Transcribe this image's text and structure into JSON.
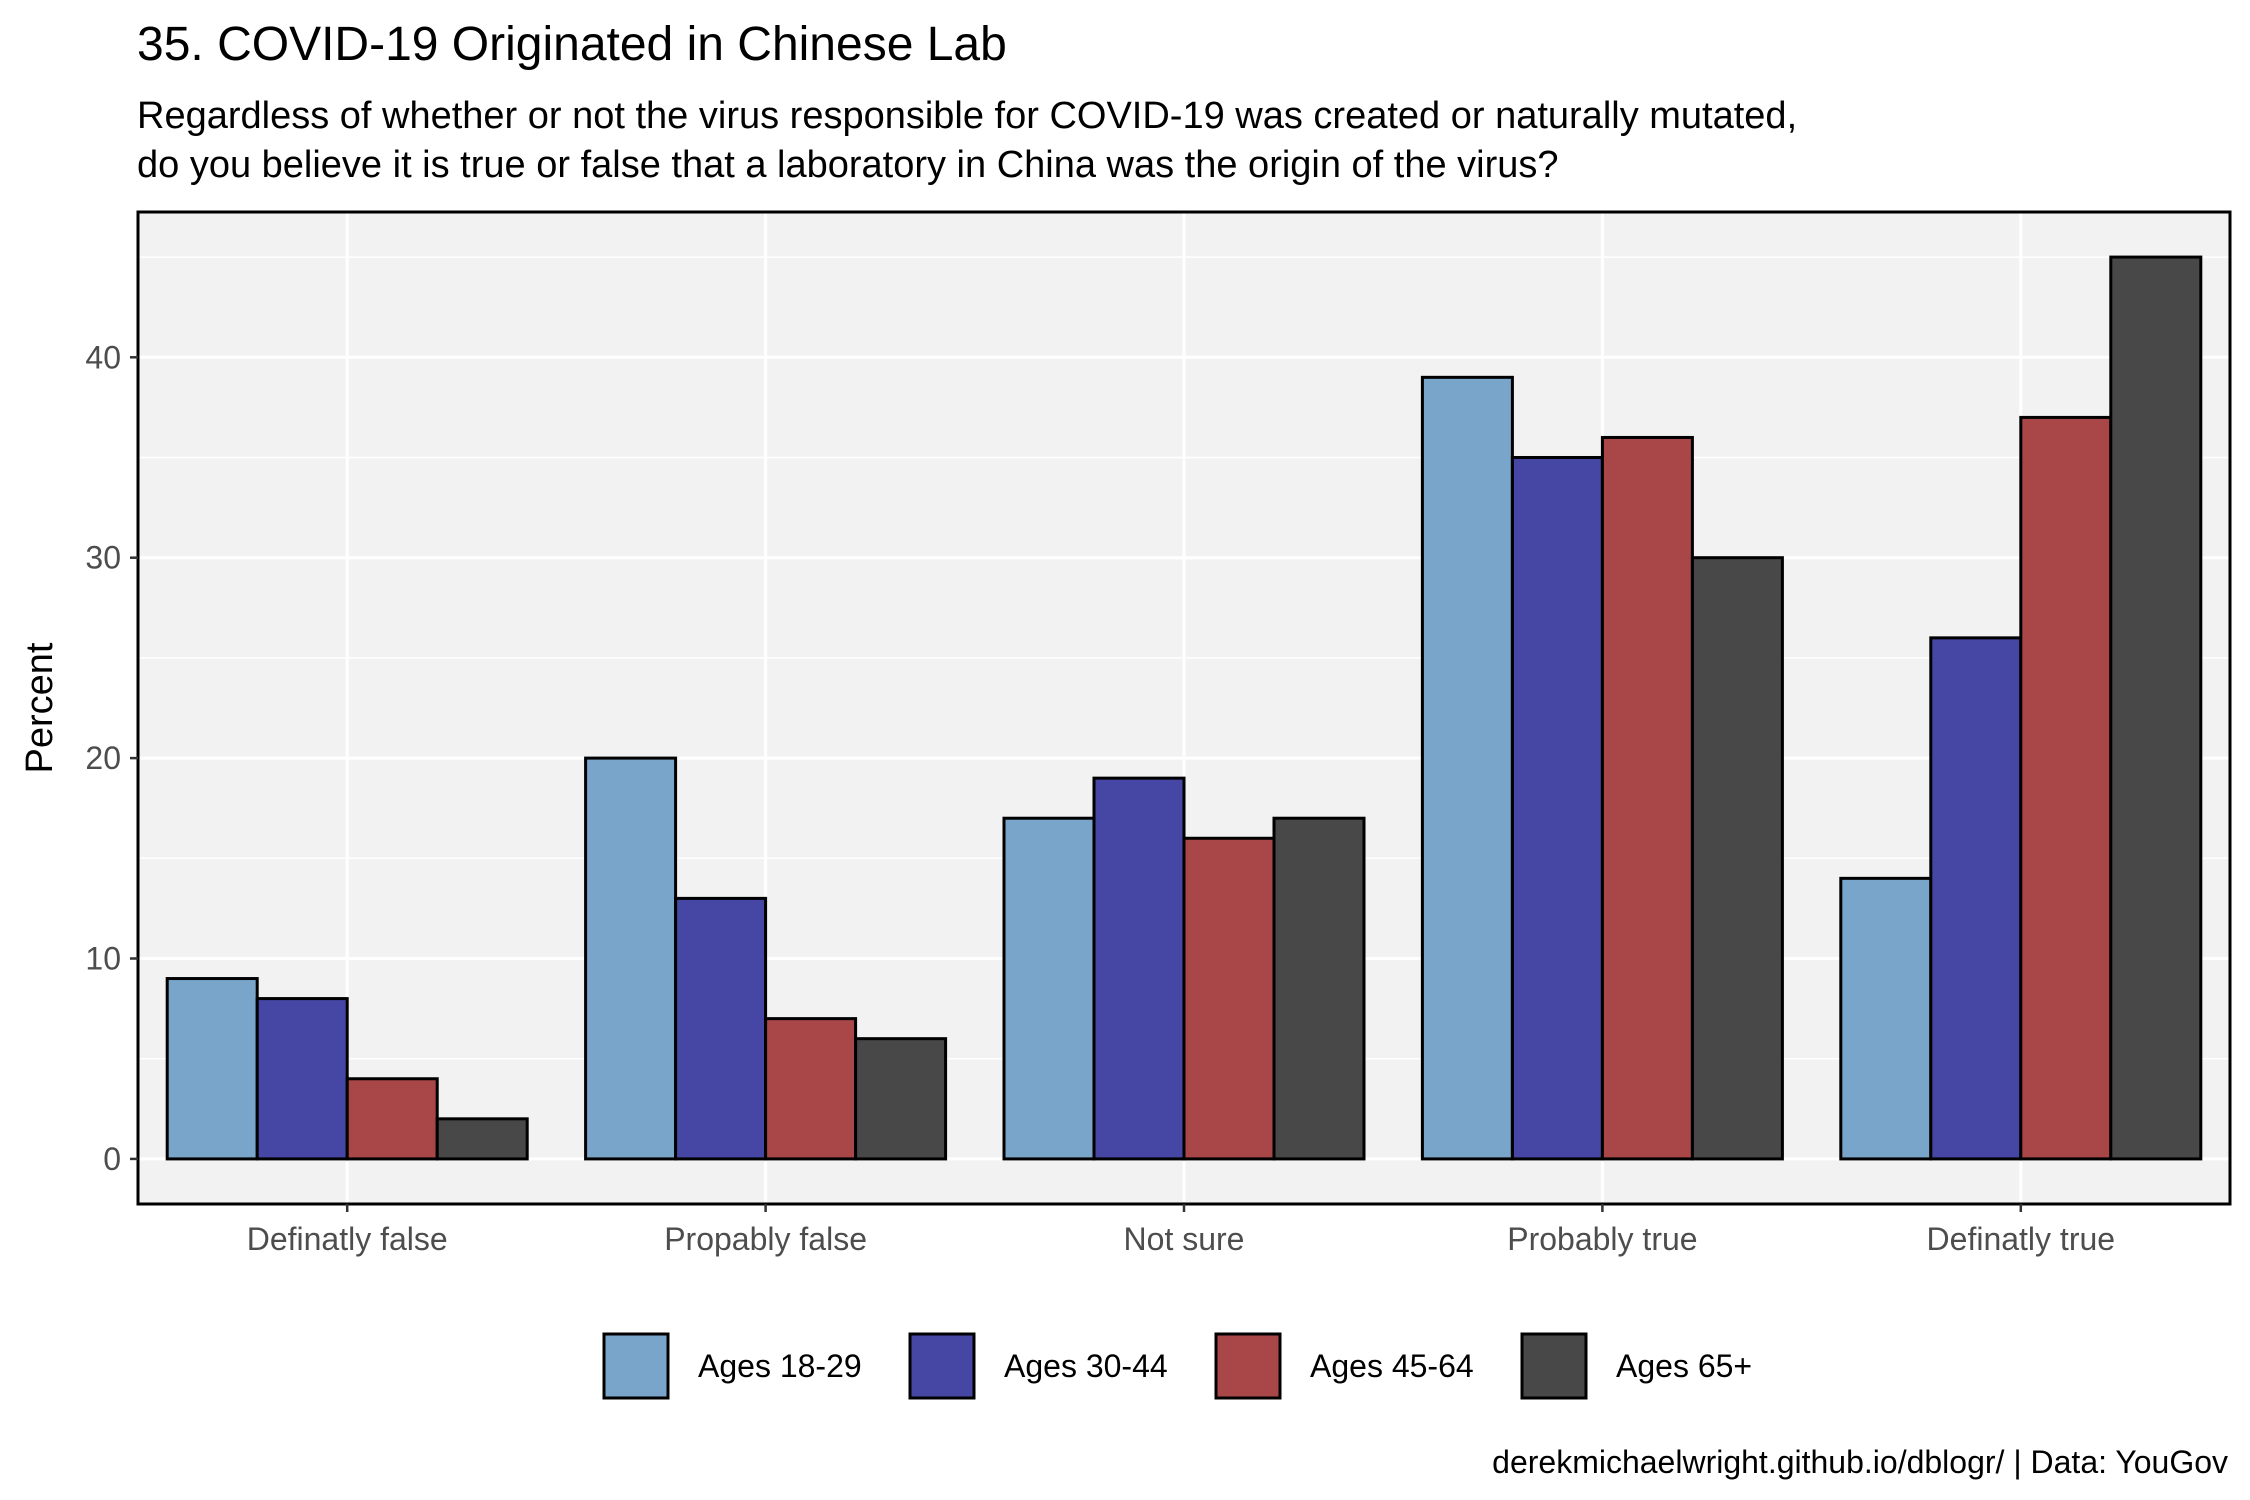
{
  "chart_data": {
    "type": "bar",
    "title": "35. COVID-19 Originated in Chinese Lab",
    "subtitle": [
      "Regardless of whether or not the virus responsible for COVID-19 was created or naturally mutated,",
      "do you believe it is true or false that a laboratory in China was the origin of the virus?"
    ],
    "xlabel": "",
    "ylabel": "Percent",
    "caption": "derekmichaelwright.github.io/dblogr/ | Data: YouGov",
    "categories": [
      "Definatly false",
      "Propably false",
      "Not sure",
      "Probably true",
      "Definatly true"
    ],
    "series": [
      {
        "name": "Ages 18-29",
        "color": "#78a5c9",
        "values": [
          9,
          20,
          17,
          39,
          14
        ]
      },
      {
        "name": "Ages 30-44",
        "color": "#4646a5",
        "values": [
          8,
          13,
          19,
          35,
          26
        ]
      },
      {
        "name": "Ages 45-64",
        "color": "#a84648",
        "values": [
          4,
          7,
          16,
          36,
          37
        ]
      },
      {
        "name": "Ages 65+",
        "color": "#484848",
        "values": [
          2,
          6,
          17,
          30,
          45
        ]
      }
    ],
    "ylim": [
      -2.25,
      47.25
    ],
    "yticks": [
      0,
      10,
      20,
      30,
      40
    ],
    "grid": true,
    "legend_position": "bottom",
    "panel_background": "#f2f2f2"
  }
}
